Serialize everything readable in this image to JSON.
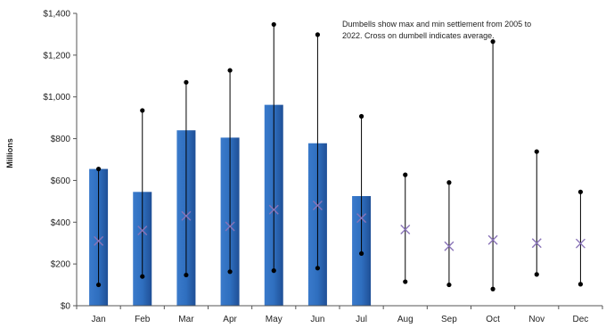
{
  "chart_data": {
    "type": "bar",
    "ylabel": "Millions",
    "ylim": [
      0,
      1400
    ],
    "y_ticks": [
      0,
      200,
      400,
      600,
      800,
      1000,
      1200,
      1400
    ],
    "y_tick_labels": [
      "$0",
      "$200",
      "$400",
      "$600",
      "$800",
      "$1,000",
      "$1,200",
      "$1,400"
    ],
    "categories": [
      "Jan",
      "Feb",
      "Mar",
      "Apr",
      "May",
      "Jun",
      "Jul",
      "Aug",
      "Sep",
      "Oct",
      "Nov",
      "Dec"
    ],
    "series": [
      {
        "values": [
          655,
          545,
          840,
          805,
          962,
          778,
          525,
          null,
          null,
          null,
          null,
          null
        ]
      },
      {
        "values": [
          655,
          935,
          1070,
          1127,
          1347,
          1298,
          907,
          627,
          590,
          1265,
          738,
          545
        ]
      },
      {
        "values": [
          100,
          140,
          147,
          163,
          168,
          180,
          250,
          115,
          100,
          80,
          150,
          103
        ]
      },
      {
        "values": [
          310,
          360,
          430,
          380,
          460,
          480,
          420,
          365,
          285,
          315,
          300,
          298
        ]
      }
    ],
    "annotation_lines": [
      "Dumbells show max and min settlement from 2005 to",
      "2022. Cross  on dumbell indicates average."
    ],
    "colors": {
      "bar": "#2F6FBF",
      "bar_dark": "#1F4F96",
      "dumbbell": "#000000",
      "average_cross": "#8A74B8",
      "axis": "#555555"
    }
  }
}
